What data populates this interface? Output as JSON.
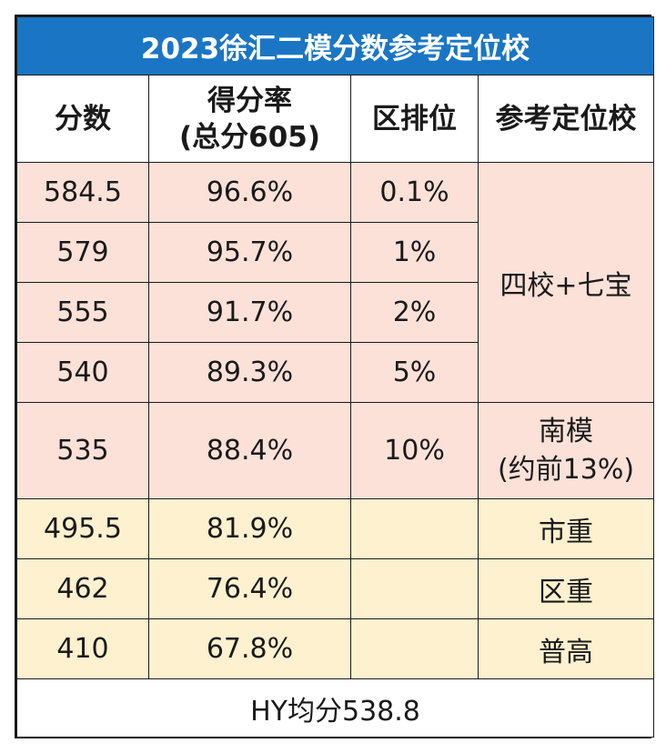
{
  "title": "2023徐汇二模分数参考定位校",
  "headers": {
    "score": "分数",
    "rate_line1": "得分率",
    "rate_line2": "(总分605)",
    "rank": "区排位",
    "school": "参考定位校"
  },
  "rows": [
    {
      "score": "584.5",
      "rate": "96.6%",
      "rank": "0.1%"
    },
    {
      "score": "579",
      "rate": "95.7%",
      "rank": "1%"
    },
    {
      "score": "555",
      "rate": "91.7%",
      "rank": "2%"
    },
    {
      "score": "540",
      "rate": "89.3%",
      "rank": "5%"
    },
    {
      "score": "535",
      "rate": "88.4%",
      "rank": "10%"
    },
    {
      "score": "495.5",
      "rate": "81.9%",
      "rank": ""
    },
    {
      "score": "462",
      "rate": "76.4%",
      "rank": ""
    },
    {
      "score": "410",
      "rate": "67.8%",
      "rank": ""
    }
  ],
  "schools": {
    "group1": "四校+七宝",
    "group2_line1": "南模",
    "group2_line2": "(约前13%)",
    "row6": "市重",
    "row7": "区重",
    "row8": "普高"
  },
  "footer": "HY均分538.8",
  "colors": {
    "title_bg": "#1a76c4",
    "pink_bg": "#fbe1d8",
    "yellow_bg": "#fdf1cf"
  }
}
